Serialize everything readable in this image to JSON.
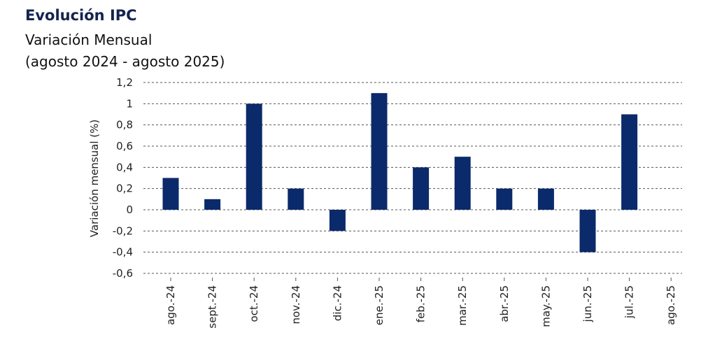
{
  "chart_data": {
    "type": "bar",
    "title": "Evolución IPC",
    "subtitle": "Variación Mensual",
    "subtitle2": "(agosto 2024 - agosto 2025)",
    "ylabel": "Variación mensual (%)",
    "xlabel": "",
    "categories": [
      "ago.-24",
      "sept.-24",
      "oct.-24",
      "nov.-24",
      "dic.-24",
      "ene.-25",
      "feb.-25",
      "mar.-25",
      "abr.-25",
      "may.-25",
      "jun.-25",
      "jul.-25",
      "ago.-25"
    ],
    "values": [
      0.3,
      0.1,
      1.0,
      0.2,
      -0.2,
      1.1,
      0.4,
      0.5,
      0.2,
      0.2,
      -0.4,
      0.9,
      null
    ],
    "ylim": [
      -0.6,
      1.2
    ],
    "yticks": [
      1.2,
      1.0,
      0.8,
      0.6,
      0.4,
      0.2,
      0.0,
      -0.2,
      -0.4,
      -0.6
    ],
    "ytick_labels": [
      "1,2",
      "1",
      "0,8",
      "0,6",
      "0,4",
      "0,2",
      "0",
      "-0,2",
      "-0,4",
      "-0,6"
    ],
    "grid": true,
    "grid_style": "dashed",
    "bar_color": "#0b2a6b",
    "legend": "none"
  }
}
